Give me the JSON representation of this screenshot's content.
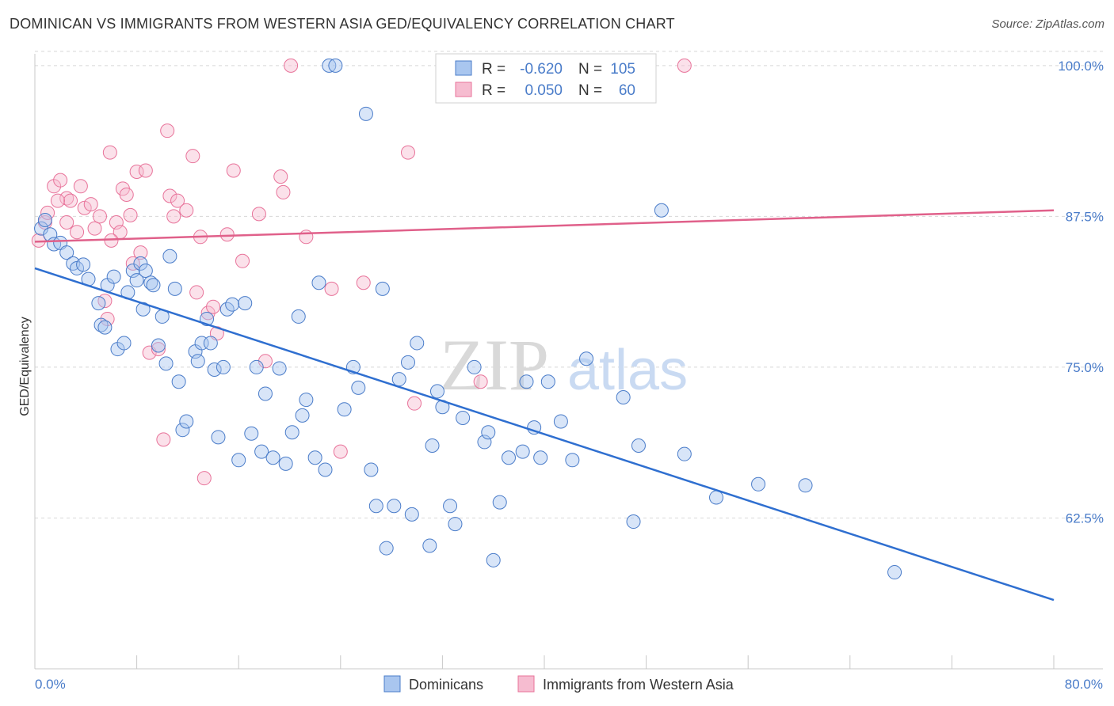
{
  "title": "DOMINICAN VS IMMIGRANTS FROM WESTERN ASIA GED/EQUIVALENCY CORRELATION CHART",
  "source": "Source: ZipAtlas.com",
  "watermark": {
    "zip": "ZIP",
    "atlas": "atlas"
  },
  "colors": {
    "blue": "#4a7cc9",
    "blue_fill": "#a9c6ef",
    "blue_line": "#2f6fd0",
    "pink": "#e8739a",
    "pink_fill": "#f6bcd0",
    "pink_line": "#e0608a",
    "grid": "#d8d8d8",
    "axis": "#c8c8c8"
  },
  "stats_legend": [
    {
      "r_label": "R =",
      "r_value": "-0.620",
      "n_label": "N =",
      "n_value": "105",
      "color": "blue"
    },
    {
      "r_label": "R =",
      "r_value": "0.050",
      "n_label": "N =",
      "n_value": "60",
      "color": "pink"
    }
  ],
  "chart_data": {
    "type": "scatter",
    "title": "DOMINICAN VS IMMIGRANTS FROM WESTERN ASIA GED/EQUIVALENCY CORRELATION CHART",
    "xlabel": "",
    "ylabel": "GED/Equivalency",
    "xlim": [
      0,
      80
    ],
    "ylim": [
      50,
      101.5
    ],
    "x_tick_labels": [
      "0.0%",
      "80.0%"
    ],
    "y_ticks": [
      100,
      87.5,
      75,
      62.5
    ],
    "y_tick_labels": [
      "100.0%",
      "87.5%",
      "75.0%",
      "62.5%"
    ],
    "grid": true,
    "legend_position": "bottom",
    "series": [
      {
        "name": "Dominicans",
        "color": "blue",
        "trend": {
          "x": [
            0,
            80
          ],
          "y": [
            83.2,
            55.7
          ]
        },
        "points": [
          [
            0.5,
            86.5
          ],
          [
            0.8,
            87.2
          ],
          [
            1.2,
            86.0
          ],
          [
            1.5,
            85.2
          ],
          [
            2.0,
            85.3
          ],
          [
            2.5,
            84.5
          ],
          [
            3.0,
            83.6
          ],
          [
            3.3,
            83.2
          ],
          [
            3.8,
            83.5
          ],
          [
            4.2,
            82.3
          ],
          [
            5.0,
            80.3
          ],
          [
            5.2,
            78.5
          ],
          [
            5.5,
            78.3
          ],
          [
            5.7,
            81.8
          ],
          [
            6.2,
            82.5
          ],
          [
            6.5,
            76.5
          ],
          [
            7.0,
            77.0
          ],
          [
            7.3,
            81.2
          ],
          [
            7.7,
            83.0
          ],
          [
            8.0,
            82.2
          ],
          [
            8.3,
            83.6
          ],
          [
            8.5,
            79.8
          ],
          [
            8.7,
            83.0
          ],
          [
            9.1,
            82.0
          ],
          [
            9.3,
            81.8
          ],
          [
            9.7,
            76.8
          ],
          [
            10.0,
            79.2
          ],
          [
            10.3,
            75.3
          ],
          [
            10.6,
            84.2
          ],
          [
            11.0,
            81.5
          ],
          [
            11.3,
            73.8
          ],
          [
            11.6,
            69.8
          ],
          [
            11.9,
            70.5
          ],
          [
            12.6,
            76.3
          ],
          [
            12.8,
            75.5
          ],
          [
            13.1,
            77.0
          ],
          [
            13.5,
            79.0
          ],
          [
            13.8,
            77.0
          ],
          [
            14.1,
            74.8
          ],
          [
            14.4,
            69.2
          ],
          [
            14.8,
            75.0
          ],
          [
            15.1,
            79.8
          ],
          [
            15.5,
            80.2
          ],
          [
            16.0,
            67.3
          ],
          [
            16.5,
            80.3
          ],
          [
            17.0,
            69.5
          ],
          [
            17.4,
            75.0
          ],
          [
            17.8,
            68.0
          ],
          [
            18.1,
            72.8
          ],
          [
            18.7,
            67.5
          ],
          [
            19.2,
            74.9
          ],
          [
            19.7,
            67.0
          ],
          [
            20.2,
            69.6
          ],
          [
            20.7,
            79.2
          ],
          [
            21.0,
            71.0
          ],
          [
            21.3,
            72.3
          ],
          [
            22.0,
            67.5
          ],
          [
            22.3,
            82.0
          ],
          [
            22.8,
            66.5
          ],
          [
            23.1,
            100.0
          ],
          [
            23.6,
            100.0
          ],
          [
            24.3,
            71.5
          ],
          [
            25.0,
            75.0
          ],
          [
            25.4,
            73.3
          ],
          [
            26.0,
            96.0
          ],
          [
            26.4,
            66.5
          ],
          [
            26.8,
            63.5
          ],
          [
            27.3,
            81.5
          ],
          [
            27.6,
            60.0
          ],
          [
            28.2,
            63.5
          ],
          [
            28.6,
            74.0
          ],
          [
            29.3,
            75.4
          ],
          [
            29.6,
            62.8
          ],
          [
            30.0,
            77.0
          ],
          [
            31.0,
            60.2
          ],
          [
            31.2,
            68.5
          ],
          [
            31.6,
            73.0
          ],
          [
            32.0,
            71.7
          ],
          [
            32.6,
            63.5
          ],
          [
            33.0,
            62.0
          ],
          [
            33.6,
            70.8
          ],
          [
            34.5,
            75.0
          ],
          [
            35.3,
            68.8
          ],
          [
            35.6,
            69.6
          ],
          [
            36.0,
            59.0
          ],
          [
            36.5,
            63.8
          ],
          [
            37.2,
            67.5
          ],
          [
            38.3,
            68.0
          ],
          [
            38.6,
            73.8
          ],
          [
            39.2,
            70.0
          ],
          [
            39.7,
            67.5
          ],
          [
            40.3,
            73.8
          ],
          [
            41.3,
            70.5
          ],
          [
            42.2,
            67.3
          ],
          [
            43.3,
            75.7
          ],
          [
            46.2,
            72.5
          ],
          [
            47.0,
            62.2
          ],
          [
            47.4,
            68.5
          ],
          [
            48.0,
            98.8
          ],
          [
            49.2,
            88.0
          ],
          [
            51.0,
            67.8
          ],
          [
            53.5,
            64.2
          ],
          [
            56.8,
            65.3
          ],
          [
            60.5,
            65.2
          ],
          [
            67.5,
            58.0
          ]
        ]
      },
      {
        "name": "Immigrants from Western Asia",
        "color": "pink",
        "trend": {
          "x": [
            0,
            80
          ],
          "y": [
            85.4,
            88.0
          ]
        },
        "points": [
          [
            0.3,
            85.5
          ],
          [
            0.8,
            87.0
          ],
          [
            1.0,
            87.8
          ],
          [
            1.5,
            90.0
          ],
          [
            2.0,
            90.5
          ],
          [
            2.5,
            89.0
          ],
          [
            2.8,
            88.8
          ],
          [
            3.3,
            86.2
          ],
          [
            3.6,
            90.0
          ],
          [
            3.9,
            88.2
          ],
          [
            4.4,
            88.5
          ],
          [
            4.7,
            86.5
          ],
          [
            5.1,
            87.5
          ],
          [
            5.5,
            80.5
          ],
          [
            5.7,
            79.0
          ],
          [
            5.9,
            92.8
          ],
          [
            6.4,
            87.0
          ],
          [
            6.7,
            86.2
          ],
          [
            6.9,
            89.8
          ],
          [
            7.2,
            89.3
          ],
          [
            7.5,
            87.6
          ],
          [
            7.7,
            83.6
          ],
          [
            8.0,
            91.2
          ],
          [
            8.3,
            84.5
          ],
          [
            8.7,
            91.3
          ],
          [
            9.0,
            76.2
          ],
          [
            9.7,
            76.5
          ],
          [
            10.1,
            69.0
          ],
          [
            10.4,
            94.6
          ],
          [
            10.6,
            89.2
          ],
          [
            10.9,
            87.5
          ],
          [
            11.2,
            88.8
          ],
          [
            11.9,
            88.0
          ],
          [
            12.4,
            92.5
          ],
          [
            12.7,
            81.2
          ],
          [
            13.0,
            85.8
          ],
          [
            13.3,
            65.8
          ],
          [
            13.6,
            79.5
          ],
          [
            14.0,
            80.0
          ],
          [
            14.3,
            77.8
          ],
          [
            15.1,
            86.0
          ],
          [
            15.6,
            91.3
          ],
          [
            16.3,
            83.8
          ],
          [
            17.6,
            87.7
          ],
          [
            18.1,
            75.5
          ],
          [
            19.3,
            90.8
          ],
          [
            19.5,
            89.5
          ],
          [
            20.1,
            100.0
          ],
          [
            21.3,
            85.8
          ],
          [
            23.3,
            81.5
          ],
          [
            24.0,
            68.0
          ],
          [
            25.8,
            82.0
          ],
          [
            29.3,
            92.8
          ],
          [
            29.8,
            72.0
          ],
          [
            35.0,
            73.8
          ],
          [
            40.7,
            100.0
          ],
          [
            51.0,
            100.0
          ],
          [
            2.5,
            87.0
          ],
          [
            6.0,
            85.5
          ],
          [
            1.8,
            88.8
          ]
        ]
      }
    ]
  },
  "bottom_legend": [
    {
      "label": "Dominicans",
      "color": "blue"
    },
    {
      "label": "Immigrants from Western Asia",
      "color": "pink"
    }
  ]
}
